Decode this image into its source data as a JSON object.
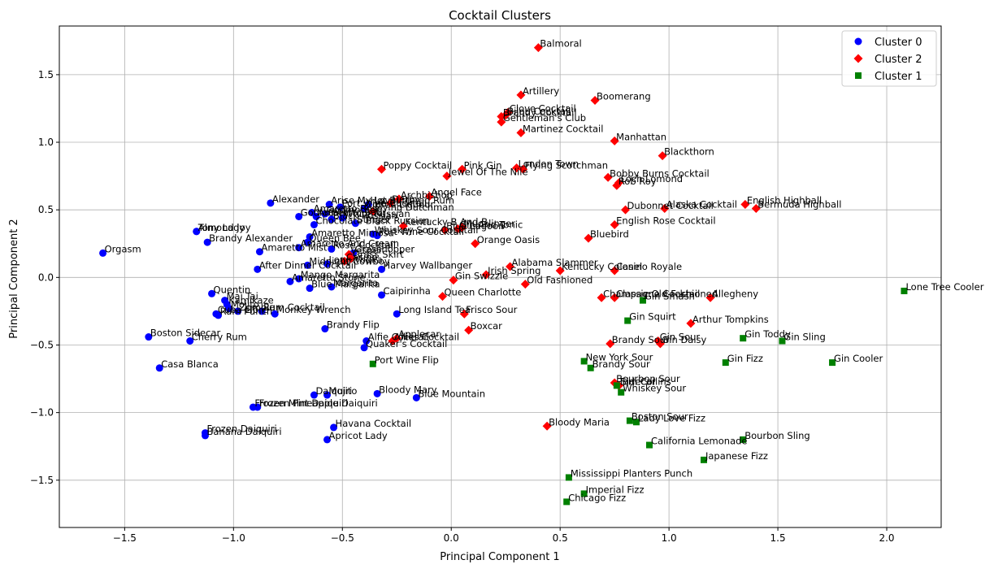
{
  "chart_data": {
    "type": "scatter",
    "title": "Cocktail Clusters",
    "xlabel": "Principal Component 1",
    "ylabel": "Principal Component 2",
    "xlim": [
      -1.8,
      2.25
    ],
    "ylim": [
      -1.85,
      1.86
    ],
    "xticks": [
      -1.5,
      -1.0,
      -0.5,
      0.0,
      0.5,
      1.0,
      1.5,
      2.0
    ],
    "yticks": [
      -1.5,
      -1.0,
      -0.5,
      0.0,
      0.5,
      1.0,
      1.5
    ],
    "xtick_labels": [
      "−1.5",
      "−1.0",
      "−0.5",
      "0.0",
      "0.5",
      "1.0",
      "1.5",
      "2.0"
    ],
    "ytick_labels": [
      "−1.5",
      "−1.0",
      "−0.5",
      "0.0",
      "0.5",
      "1.0",
      "1.5"
    ],
    "grid": true,
    "legend_position": "top-right",
    "series": [
      {
        "name": "Cluster 0",
        "color": "#0000ff",
        "marker": "circle",
        "points": [
          {
            "label": "Orgasm",
            "x": -1.6,
            "y": 0.18
          },
          {
            "label": "Almond Joy",
            "x": -1.17,
            "y": 0.34
          },
          {
            "label": "Tony Lady",
            "x": -1.17,
            "y": 0.34
          },
          {
            "label": "Brandy Alexander",
            "x": -1.12,
            "y": 0.26
          },
          {
            "label": "Alexander",
            "x": -0.83,
            "y": 0.55
          },
          {
            "label": "Amaretto Mist",
            "x": -0.88,
            "y": 0.19
          },
          {
            "label": "After Dinner Cocktail",
            "x": -0.89,
            "y": 0.06
          },
          {
            "label": "Godfather",
            "x": -0.7,
            "y": 0.45
          },
          {
            "label": "Amaretto Rose",
            "x": -0.64,
            "y": 0.48
          },
          {
            "label": "Amaretto Sour",
            "x": -0.62,
            "y": 0.45
          },
          {
            "label": "Chocolate Black Russian",
            "x": -0.63,
            "y": 0.39
          },
          {
            "label": "Amaretto Mimosa",
            "x": -0.65,
            "y": 0.3
          },
          {
            "label": "Amaretto And Cream",
            "x": -0.7,
            "y": 0.22
          },
          {
            "label": "Queen Bee",
            "x": -0.66,
            "y": 0.26
          },
          {
            "label": "Midnight Cowboy",
            "x": -0.66,
            "y": 0.09
          },
          {
            "label": "Long Vodka",
            "x": -0.57,
            "y": 0.1
          },
          {
            "label": "Arise My Love",
            "x": -0.56,
            "y": 0.54
          },
          {
            "label": "Port Wine Cocktail",
            "x": -0.51,
            "y": 0.52
          },
          {
            "label": "Godmother",
            "x": -0.58,
            "y": 0.47
          },
          {
            "label": "Black Russian",
            "x": -0.55,
            "y": 0.43
          },
          {
            "label": "White Russian",
            "x": -0.5,
            "y": 0.44
          },
          {
            "label": "Rose Cocktail",
            "x": -0.55,
            "y": 0.21
          },
          {
            "label": "Grasshopper",
            "x": -0.45,
            "y": 0.18
          },
          {
            "label": "Stinger",
            "x": -0.44,
            "y": 0.4
          },
          {
            "label": "Hot Buttered Rum",
            "x": -0.38,
            "y": 0.54
          },
          {
            "label": "Coffee Liqueur",
            "x": -0.4,
            "y": 0.51
          },
          {
            "label": "Port Wine Cocktail 2",
            "x": -0.34,
            "y": 0.31
          },
          {
            "label": "Whiskey Sour Cocktail",
            "x": -0.36,
            "y": 0.32
          },
          {
            "label": "Harvey Wallbanger",
            "x": -0.32,
            "y": 0.06
          },
          {
            "label": "Amaretto Stone",
            "x": -0.74,
            "y": -0.03
          },
          {
            "label": "Mango Margarita",
            "x": -0.7,
            "y": -0.01
          },
          {
            "label": "Blue Margarita",
            "x": -0.65,
            "y": -0.08
          },
          {
            "label": "Margarita",
            "x": -0.55,
            "y": -0.07
          },
          {
            "label": "Quentin",
            "x": -1.1,
            "y": -0.12
          },
          {
            "label": "Mai Tai",
            "x": -1.04,
            "y": -0.17
          },
          {
            "label": "Kamikaze",
            "x": -1.03,
            "y": -0.2
          },
          {
            "label": "Mojito",
            "x": -1.02,
            "y": -0.23
          },
          {
            "label": "Zombie",
            "x": -0.98,
            "y": -0.25
          },
          {
            "label": "Cuba Libre",
            "x": -1.08,
            "y": -0.27
          },
          {
            "label": "Rum Punch",
            "x": -1.07,
            "y": -0.28
          },
          {
            "label": "Monkey Wrench",
            "x": -0.81,
            "y": -0.27
          },
          {
            "label": "Rum Cocktail",
            "x": -0.87,
            "y": -0.25
          },
          {
            "label": "Caipirinha",
            "x": -0.32,
            "y": -0.13
          },
          {
            "label": "Long Island Tea",
            "x": -0.25,
            "y": -0.27
          },
          {
            "label": "Boston Sidecar",
            "x": -1.39,
            "y": -0.44
          },
          {
            "label": "Cherry Rum",
            "x": -1.2,
            "y": -0.47
          },
          {
            "label": "Brandy Flip",
            "x": -0.58,
            "y": -0.38
          },
          {
            "label": "Alfie Cocktail",
            "x": -0.39,
            "y": -0.47
          },
          {
            "label": "Quaker's Cocktail",
            "x": -0.4,
            "y": -0.52
          },
          {
            "label": "Casa Blanca",
            "x": -1.34,
            "y": -0.67
          },
          {
            "label": "Daiquiri",
            "x": -0.63,
            "y": -0.87
          },
          {
            "label": "Mojito 2",
            "x": -0.57,
            "y": -0.87
          },
          {
            "label": "Bloody Mary",
            "x": -0.34,
            "y": -0.86
          },
          {
            "label": "Blue Mountain",
            "x": -0.16,
            "y": -0.89
          },
          {
            "label": "Frozen Mint Daiquiri",
            "x": -0.91,
            "y": -0.96
          },
          {
            "label": "Frozen Pineapple Daiquiri",
            "x": -0.89,
            "y": -0.96
          },
          {
            "label": "Havana Cocktail",
            "x": -0.54,
            "y": -1.11
          },
          {
            "label": "Frozen Daiquiri",
            "x": -1.13,
            "y": -1.15
          },
          {
            "label": "Banana Daiquiri",
            "x": -1.13,
            "y": -1.17
          },
          {
            "label": "Apricot Lady",
            "x": -0.57,
            "y": -1.2
          }
        ]
      },
      {
        "name": "Cluster 2",
        "color": "#ff0000",
        "marker": "diamond",
        "points": [
          {
            "label": "Balmoral",
            "x": 0.4,
            "y": 1.7
          },
          {
            "label": "Artillery",
            "x": 0.32,
            "y": 1.35
          },
          {
            "label": "Boomerang",
            "x": 0.66,
            "y": 1.31
          },
          {
            "label": "Clove Cocktail",
            "x": 0.26,
            "y": 1.22
          },
          {
            "label": "Bijou Cocktail",
            "x": 0.25,
            "y": 1.2
          },
          {
            "label": "Brandy Cocktail",
            "x": 0.23,
            "y": 1.19
          },
          {
            "label": "Gentleman's Club",
            "x": 0.23,
            "y": 1.15
          },
          {
            "label": "Martinez Cocktail",
            "x": 0.32,
            "y": 1.07
          },
          {
            "label": "Manhattan",
            "x": 0.75,
            "y": 1.01
          },
          {
            "label": "Blackthorn",
            "x": 0.97,
            "y": 0.9
          },
          {
            "label": "Poppy Cocktail",
            "x": -0.32,
            "y": 0.8
          },
          {
            "label": "Pink Gin",
            "x": 0.05,
            "y": 0.8
          },
          {
            "label": "London Town",
            "x": 0.3,
            "y": 0.81
          },
          {
            "label": "Flying Scotchman",
            "x": 0.33,
            "y": 0.8
          },
          {
            "label": "Jewel Of The Nile",
            "x": -0.02,
            "y": 0.75
          },
          {
            "label": "Bobby Burns Cocktail",
            "x": 0.72,
            "y": 0.74
          },
          {
            "label": "Loch Lomond",
            "x": 0.77,
            "y": 0.7
          },
          {
            "label": "Rob Roy",
            "x": 0.76,
            "y": 0.68
          },
          {
            "label": "Angel Face",
            "x": -0.1,
            "y": 0.6
          },
          {
            "label": "Archbishop",
            "x": -0.24,
            "y": 0.58
          },
          {
            "label": "Derby",
            "x": -0.28,
            "y": 0.55
          },
          {
            "label": "Flying Dutchman",
            "x": -0.36,
            "y": 0.49
          },
          {
            "label": "Kentucky B And B",
            "x": -0.22,
            "y": 0.38
          },
          {
            "label": "Blue Lagoon",
            "x": -0.03,
            "y": 0.35
          },
          {
            "label": "Mudslinger",
            "x": 0.05,
            "y": 0.37
          },
          {
            "label": "Gin And Tonic",
            "x": 0.03,
            "y": 0.36
          },
          {
            "label": "Dubonnet Cocktail",
            "x": 0.8,
            "y": 0.5
          },
          {
            "label": "Alaska Cocktail",
            "x": 0.98,
            "y": 0.51
          },
          {
            "label": "English Highball",
            "x": 1.35,
            "y": 0.54
          },
          {
            "label": "Bermuda Highball",
            "x": 1.4,
            "y": 0.51
          },
          {
            "label": "English Rose Cocktail",
            "x": 0.75,
            "y": 0.39
          },
          {
            "label": "Bluebird",
            "x": 0.63,
            "y": 0.29
          },
          {
            "label": "Orange Oasis",
            "x": 0.11,
            "y": 0.25
          },
          {
            "label": "Vesper",
            "x": -0.47,
            "y": 0.17
          },
          {
            "label": "Grass Skirt",
            "x": -0.46,
            "y": 0.14
          },
          {
            "label": "Casino",
            "x": -0.49,
            "y": 0.12
          },
          {
            "label": "Alabama Slammer",
            "x": 0.27,
            "y": 0.08
          },
          {
            "label": "Kentucky Colonel",
            "x": 0.5,
            "y": 0.05
          },
          {
            "label": "Casino Royale",
            "x": 0.75,
            "y": 0.05
          },
          {
            "label": "Irish Spring",
            "x": 0.16,
            "y": 0.02
          },
          {
            "label": "Gin Swizzle",
            "x": 0.01,
            "y": -0.02
          },
          {
            "label": "Old Fashioned",
            "x": 0.34,
            "y": -0.05
          },
          {
            "label": "Queen Charlotte",
            "x": -0.04,
            "y": -0.14
          },
          {
            "label": "Champagne Cocktail",
            "x": 0.69,
            "y": -0.15
          },
          {
            "label": "Classic Old-Fashioned",
            "x": 0.75,
            "y": -0.15
          },
          {
            "label": "Allegheny",
            "x": 1.19,
            "y": -0.15
          },
          {
            "label": "Frisco Sour",
            "x": 0.06,
            "y": -0.27
          },
          {
            "label": "Boxcar",
            "x": 0.08,
            "y": -0.39
          },
          {
            "label": "Arthur Tompkins",
            "x": 1.1,
            "y": -0.34
          },
          {
            "label": "Applecar",
            "x": -0.25,
            "y": -0.45
          },
          {
            "label": "Allies Cocktail",
            "x": -0.27,
            "y": -0.47
          },
          {
            "label": "Brandy Sour",
            "x": 0.73,
            "y": -0.49
          },
          {
            "label": "Gin Sour",
            "x": 0.95,
            "y": -0.47
          },
          {
            "label": "Gin Daisy",
            "x": 0.96,
            "y": -0.49
          },
          {
            "label": "Bourbon Sour",
            "x": 0.75,
            "y": -0.78
          },
          {
            "label": "Sidecar",
            "x": 0.77,
            "y": -0.8
          },
          {
            "label": "Bloody Maria",
            "x": 0.44,
            "y": -1.1
          }
        ]
      },
      {
        "name": "Cluster 1",
        "color": "#008000",
        "marker": "square",
        "points": [
          {
            "label": "Lone Tree Cooler",
            "x": 2.08,
            "y": -0.1
          },
          {
            "label": "Gin Smash",
            "x": 0.88,
            "y": -0.17
          },
          {
            "label": "Gin Squirt",
            "x": 0.81,
            "y": -0.32
          },
          {
            "label": "Gin Toddy",
            "x": 1.34,
            "y": -0.45
          },
          {
            "label": "Gin Sling",
            "x": 1.52,
            "y": -0.47
          },
          {
            "label": "Port Wine Flip",
            "x": -0.36,
            "y": -0.64
          },
          {
            "label": "New York Sour",
            "x": 0.61,
            "y": -0.62
          },
          {
            "label": "Brandy Sour",
            "x": 0.64,
            "y": -0.67
          },
          {
            "label": "Gin Fizz",
            "x": 1.26,
            "y": -0.63
          },
          {
            "label": "Gin Cooler",
            "x": 1.75,
            "y": -0.63
          },
          {
            "label": "Tom Collins",
            "x": 0.76,
            "y": -0.8
          },
          {
            "label": "Whiskey Sour",
            "x": 0.78,
            "y": -0.85
          },
          {
            "label": "Boston Sour",
            "x": 0.82,
            "y": -1.06
          },
          {
            "label": "Lady Love Fizz",
            "x": 0.85,
            "y": -1.07
          },
          {
            "label": "California Lemonade",
            "x": 0.91,
            "y": -1.24
          },
          {
            "label": "Bourbon Sling",
            "x": 1.34,
            "y": -1.2
          },
          {
            "label": "Japanese Fizz",
            "x": 1.16,
            "y": -1.35
          },
          {
            "label": "Mississippi Planters Punch",
            "x": 0.54,
            "y": -1.48
          },
          {
            "label": "Imperial Fizz",
            "x": 0.61,
            "y": -1.6
          },
          {
            "label": "Chicago Fizz",
            "x": 0.53,
            "y": -1.66
          }
        ]
      }
    ]
  }
}
